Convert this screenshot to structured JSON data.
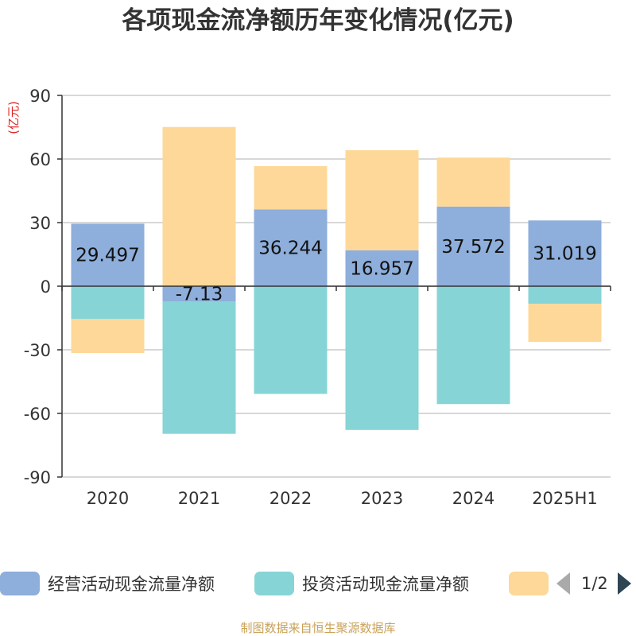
{
  "chart_data": {
    "type": "bar",
    "stacked": true,
    "title": "各项现金流净额历年变化情况(亿元)",
    "ylabel": "(亿元)",
    "categories": [
      "2020",
      "2021",
      "2022",
      "2023",
      "2024",
      "2025H1"
    ],
    "ylim": [
      -90,
      90
    ],
    "yticks": [
      90,
      60,
      30,
      0,
      -30,
      -60,
      -90
    ],
    "grid": true,
    "legend_position": "bottom",
    "series": [
      {
        "name": "经营活动现金流量净额",
        "color": "#8eaedb",
        "values": [
          29.497,
          -7.13,
          36.244,
          16.957,
          37.572,
          31.019
        ],
        "labels": [
          "29.497",
          "-7.13",
          "36.244",
          "16.957",
          "37.572",
          "31.019"
        ]
      },
      {
        "name": "投资活动现金流量净额",
        "color": "#86d4d6",
        "values": [
          -15.5,
          -62.5,
          -50.8,
          -67.8,
          -55.6,
          -8.3
        ]
      },
      {
        "name": "",
        "color": "#fed898",
        "values": [
          -16.0,
          75.1,
          20.4,
          47.2,
          23.1,
          -18.0
        ]
      }
    ]
  },
  "legend": {
    "items": [
      "经营活动现金流量净额",
      "投资活动现金流量净额",
      ""
    ],
    "colors": [
      "#8eaedb",
      "#86d4d6",
      "#fed898"
    ],
    "pager": "1/2"
  },
  "footer": "制图数据来自恒生聚源数据库"
}
